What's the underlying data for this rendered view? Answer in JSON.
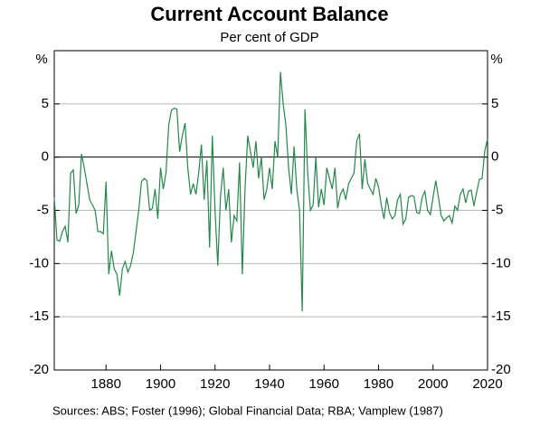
{
  "chart_data": {
    "type": "line",
    "title": "Current Account Balance",
    "subtitle": "Per cent of GDP",
    "y_unit": "%",
    "source": "Sources:  ABS; Foster (1996); Global Financial Data; RBA; Vamplew (1987)",
    "x": [
      1861,
      1862,
      1863,
      1864,
      1865,
      1866,
      1867,
      1868,
      1869,
      1870,
      1871,
      1872,
      1873,
      1874,
      1875,
      1876,
      1877,
      1878,
      1879,
      1880,
      1881,
      1882,
      1883,
      1884,
      1885,
      1886,
      1887,
      1888,
      1889,
      1890,
      1891,
      1892,
      1893,
      1894,
      1895,
      1896,
      1897,
      1898,
      1899,
      1900,
      1901,
      1902,
      1903,
      1904,
      1905,
      1906,
      1907,
      1908,
      1909,
      1910,
      1911,
      1912,
      1913,
      1914,
      1915,
      1916,
      1917,
      1918,
      1919,
      1920,
      1921,
      1922,
      1923,
      1924,
      1925,
      1926,
      1927,
      1928,
      1929,
      1930,
      1931,
      1932,
      1933,
      1934,
      1935,
      1936,
      1937,
      1938,
      1939,
      1940,
      1941,
      1942,
      1943,
      1944,
      1945,
      1946,
      1947,
      1948,
      1949,
      1950,
      1951,
      1952,
      1953,
      1954,
      1955,
      1956,
      1957,
      1958,
      1959,
      1960,
      1961,
      1962,
      1963,
      1964,
      1965,
      1966,
      1967,
      1968,
      1969,
      1970,
      1971,
      1972,
      1973,
      1974,
      1975,
      1976,
      1977,
      1978,
      1979,
      1980,
      1981,
      1982,
      1983,
      1984,
      1985,
      1986,
      1987,
      1988,
      1989,
      1990,
      1991,
      1992,
      1993,
      1994,
      1995,
      1996,
      1997,
      1998,
      1999,
      2000,
      2001,
      2002,
      2003,
      2004,
      2005,
      2006,
      2007,
      2008,
      2009,
      2010,
      2011,
      2012,
      2013,
      2014,
      2015,
      2016,
      2017,
      2018,
      2019,
      2020
    ],
    "series": [
      {
        "name": "Current account balance",
        "color": "#24884a",
        "values": [
          -3.8,
          -7.8,
          -7.9,
          -7,
          -6.5,
          -8,
          -1.5,
          -1.2,
          -5.3,
          -4.5,
          0.3,
          -1,
          -2.5,
          -4,
          -4.5,
          -5,
          -7,
          -7,
          -7.2,
          -2.3,
          -11,
          -8.8,
          -10.5,
          -11,
          -13,
          -10.5,
          -9.8,
          -10.8,
          -10.2,
          -9,
          -7,
          -5,
          -2.3,
          -2,
          -2.2,
          -5,
          -4.8,
          -3,
          -5.8,
          -1,
          -3,
          -1.5,
          3,
          4.4,
          4.6,
          4.5,
          0.5,
          2,
          3.2,
          -1,
          -3.5,
          -2.5,
          -3.5,
          -1.5,
          1.2,
          -4,
          -0.3,
          -8.5,
          2,
          -5,
          -10.2,
          -3.7,
          -1,
          -5,
          -3,
          -8,
          -5.5,
          -6,
          -0.5,
          -11,
          -3,
          2,
          0.5,
          -1,
          1.5,
          -2,
          0,
          -4,
          -3,
          -1,
          -3,
          1.5,
          0,
          8,
          5,
          3,
          -1,
          -3.5,
          1,
          -3,
          -5,
          -14.5,
          4.5,
          -1.5,
          -5,
          -4.5,
          0,
          -4.7,
          -3,
          -4.5,
          -1,
          -2,
          -3,
          -1,
          -4.8,
          -3.5,
          -3,
          -4,
          -2.5,
          -2,
          -1.5,
          1.5,
          2.2,
          -3,
          -0.2,
          -2.5,
          -3,
          -3.5,
          -2,
          -2.8,
          -4.5,
          -5.8,
          -3.8,
          -5.2,
          -5.8,
          -5.5,
          -4,
          -3.5,
          -6.3,
          -5.8,
          -3.8,
          -3.6,
          -3.7,
          -5.2,
          -5.3,
          -3.8,
          -3.2,
          -5,
          -5.4,
          -3.8,
          -2.2,
          -3.8,
          -5.5,
          -6,
          -5.7,
          -5.5,
          -6.2,
          -4.6,
          -5,
          -3.5,
          -3,
          -4.3,
          -3.2,
          -3.1,
          -4.6,
          -3.3,
          -2.1,
          -2,
          0.6,
          1.7
        ]
      }
    ],
    "xlim": [
      1861,
      2020
    ],
    "xticks": [
      1880,
      1900,
      1920,
      1940,
      1960,
      1980,
      2000,
      2020
    ],
    "ylim": [
      -20,
      10
    ],
    "yticks": [
      -20,
      -15,
      -10,
      -5,
      0,
      5
    ],
    "grid": true
  }
}
